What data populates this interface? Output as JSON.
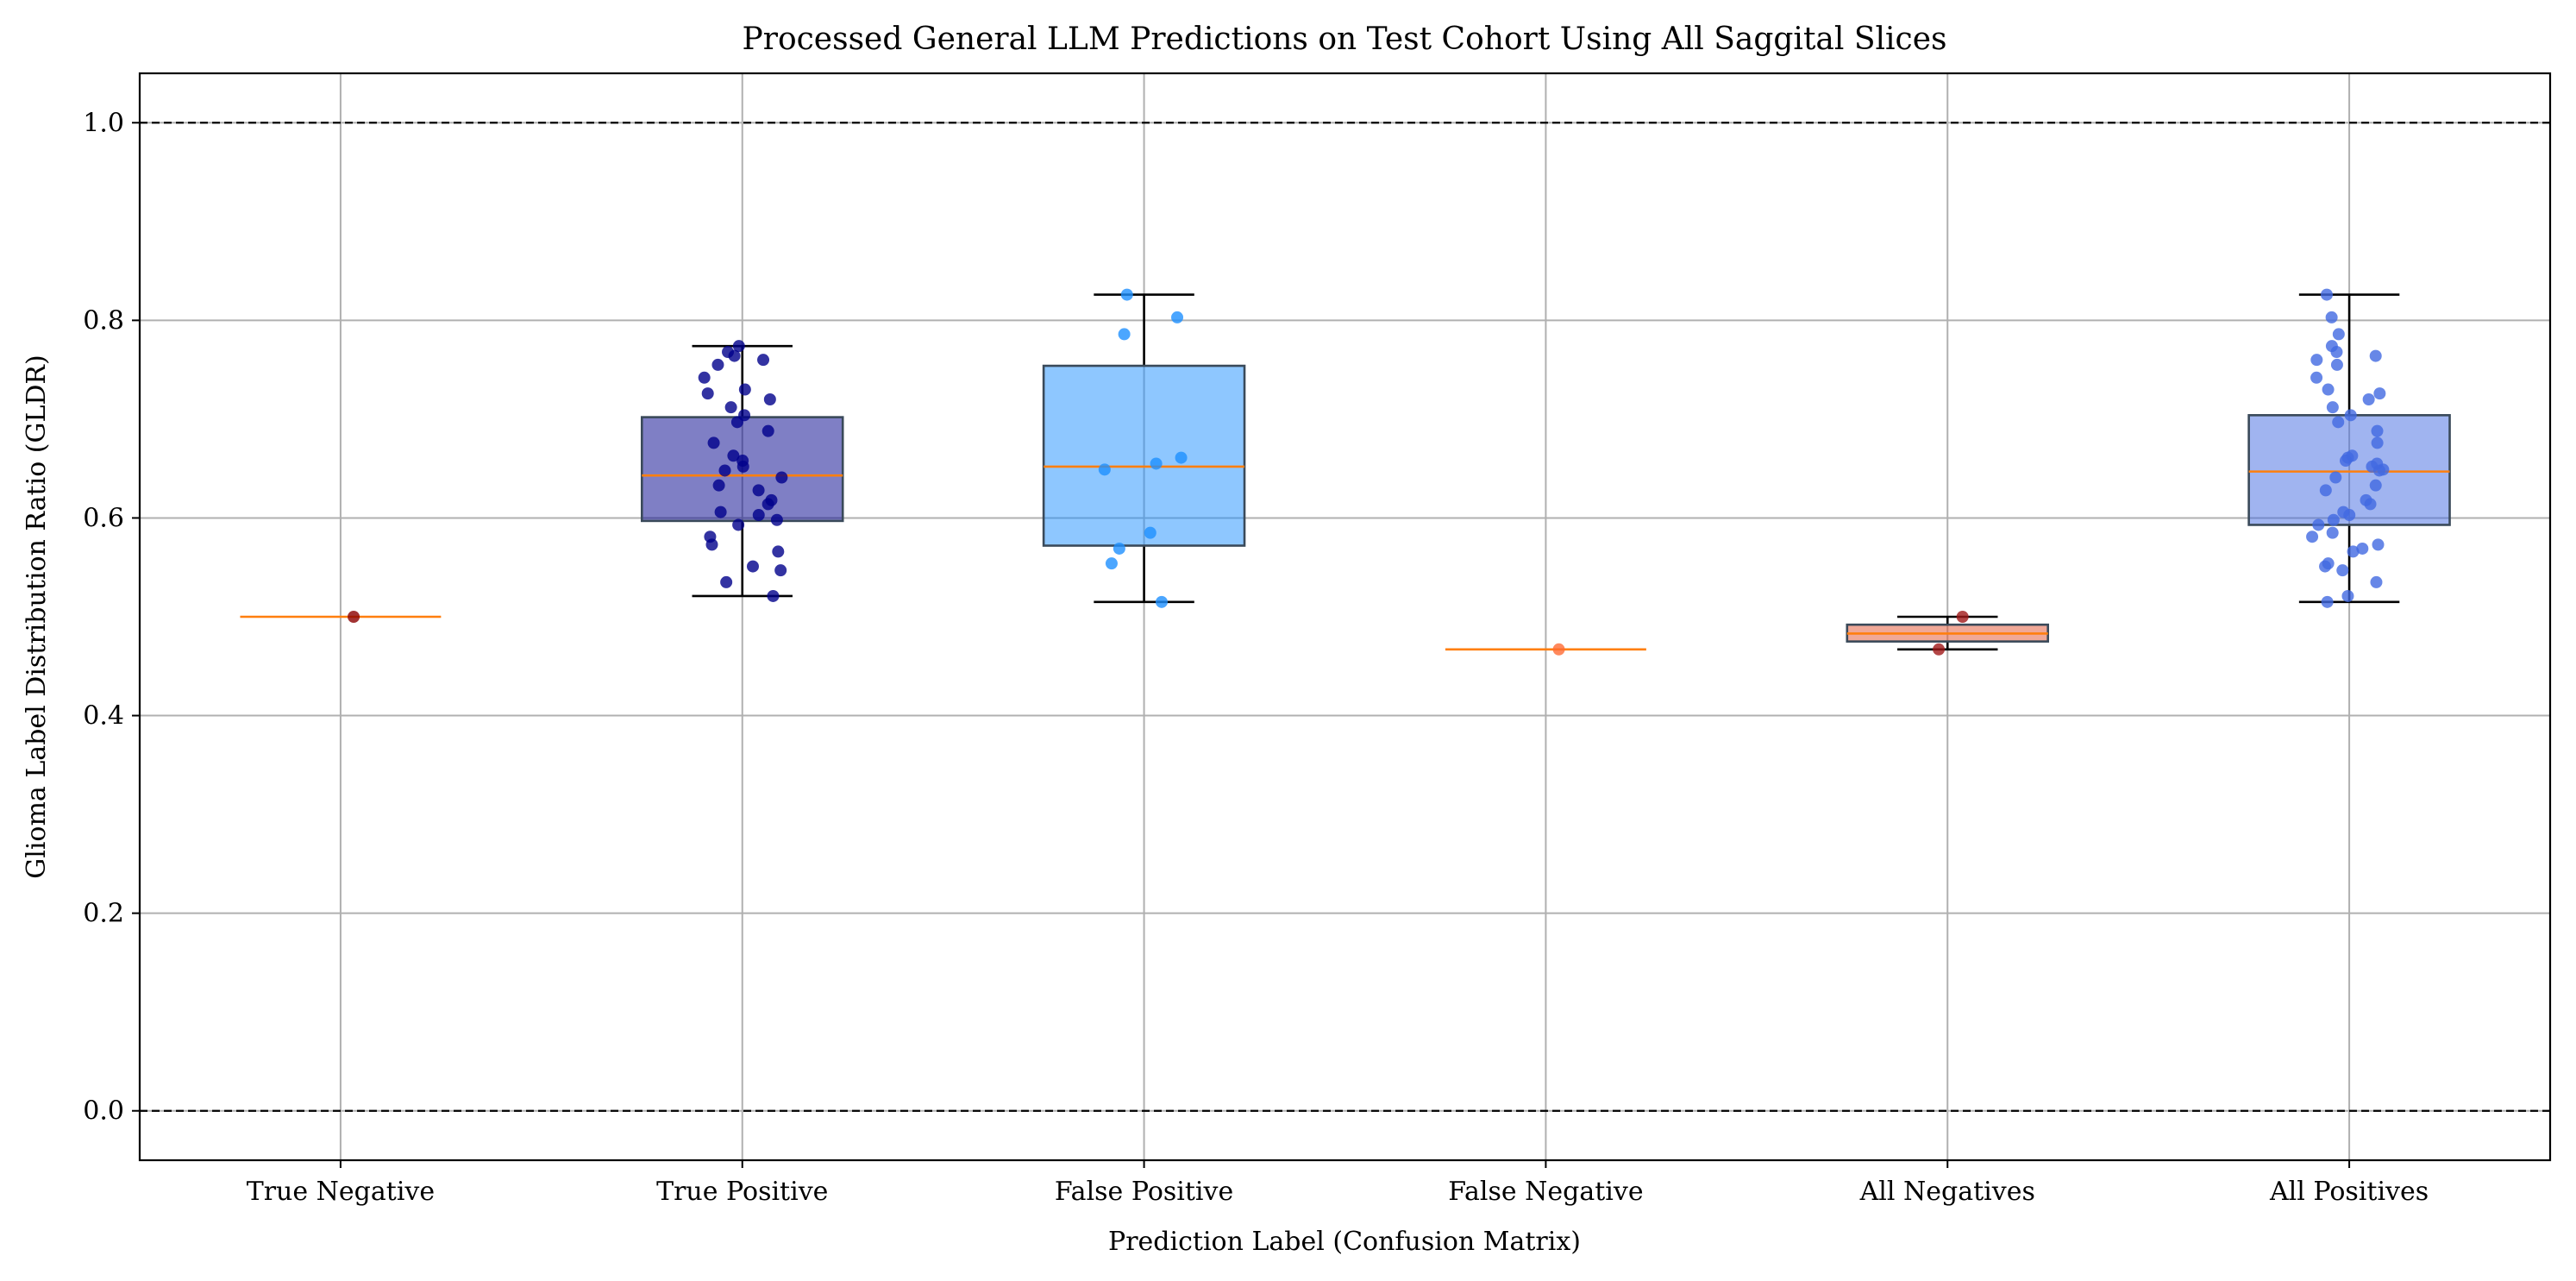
{
  "chart_data": {
    "type": "box",
    "title": "Processed General LLM Predictions on Test Cohort Using All Saggital Slices",
    "xlabel": "Prediction Label (Confusion Matrix)",
    "ylabel": "Glioma Label Distribution Ratio (GLDR)",
    "ylim": [
      -0.05,
      1.05
    ],
    "yticks": [
      "0.0",
      "0.2",
      "0.4",
      "0.6",
      "0.8",
      "1.0"
    ],
    "reference_lines": [
      0.0,
      1.0
    ],
    "grid": true,
    "categories": [
      "True Negative",
      "True Positive",
      "False Positive",
      "False Negative",
      "All Negatives",
      "All Positives"
    ],
    "groups": [
      {
        "label": "True Negative",
        "box_color": "#8b1a1a",
        "point_color": "#8b0000",
        "median": 0.5,
        "q1": 0.5,
        "q3": 0.5,
        "whisker_low": 0.5,
        "whisker_high": 0.5,
        "points": [
          0.5
        ]
      },
      {
        "label": "True Positive",
        "box_color": "#00008b",
        "point_color": "#00008b",
        "median": 0.643,
        "q1": 0.597,
        "q3": 0.702,
        "whisker_low": 0.521,
        "whisker_high": 0.774,
        "points": [
          0.521,
          0.535,
          0.547,
          0.551,
          0.566,
          0.573,
          0.581,
          0.593,
          0.598,
          0.603,
          0.606,
          0.614,
          0.618,
          0.628,
          0.633,
          0.641,
          0.648,
          0.652,
          0.658,
          0.663,
          0.676,
          0.688,
          0.697,
          0.704,
          0.712,
          0.72,
          0.726,
          0.73,
          0.742,
          0.755,
          0.76,
          0.764,
          0.768,
          0.774
        ]
      },
      {
        "label": "False Positive",
        "box_color": "#1e90ff",
        "point_color": "#1e90ff",
        "median": 0.652,
        "q1": 0.572,
        "q3": 0.754,
        "whisker_low": 0.515,
        "whisker_high": 0.826,
        "points": [
          0.515,
          0.554,
          0.569,
          0.585,
          0.649,
          0.655,
          0.661,
          0.786,
          0.803,
          0.826
        ]
      },
      {
        "label": "False Negative",
        "box_color": "#ff7f2a",
        "point_color": "#ff6b35",
        "median": 0.467,
        "q1": 0.467,
        "q3": 0.467,
        "whisker_low": 0.467,
        "whisker_high": 0.467,
        "points": [
          0.467
        ]
      },
      {
        "label": "All Negatives",
        "box_color": "#e2522f",
        "point_color": "#a01818",
        "median": 0.483,
        "q1": 0.475,
        "q3": 0.492,
        "whisker_low": 0.467,
        "whisker_high": 0.5,
        "points": [
          0.467,
          0.5
        ]
      },
      {
        "label": "All Positives",
        "box_color": "#4169e1",
        "point_color": "#4169e1",
        "median": 0.647,
        "q1": 0.593,
        "q3": 0.704,
        "whisker_low": 0.515,
        "whisker_high": 0.826,
        "points": [
          0.515,
          0.521,
          0.535,
          0.547,
          0.551,
          0.554,
          0.566,
          0.569,
          0.573,
          0.581,
          0.585,
          0.593,
          0.598,
          0.603,
          0.606,
          0.614,
          0.618,
          0.628,
          0.633,
          0.641,
          0.648,
          0.649,
          0.652,
          0.655,
          0.658,
          0.661,
          0.663,
          0.676,
          0.688,
          0.697,
          0.704,
          0.712,
          0.72,
          0.726,
          0.73,
          0.742,
          0.755,
          0.76,
          0.764,
          0.768,
          0.774,
          0.786,
          0.803,
          0.826
        ]
      }
    ],
    "colors": {
      "median": "#ff7f0e",
      "whisker": "#000000",
      "grid": "#b0b0b0",
      "box_edge": "#3a4a5a"
    }
  }
}
